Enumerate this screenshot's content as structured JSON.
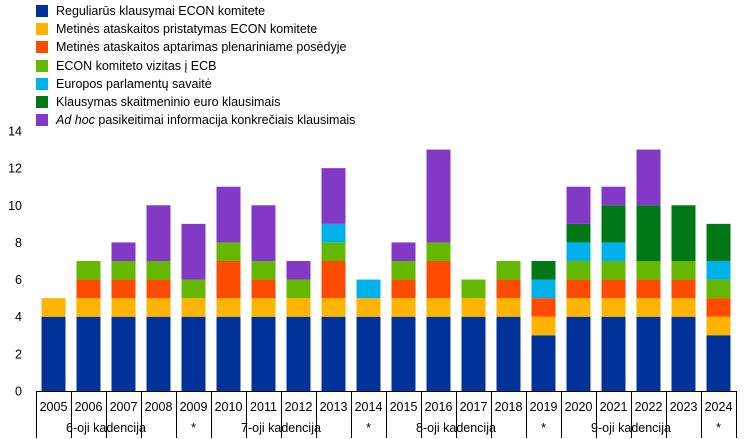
{
  "chart_data": {
    "type": "bar",
    "stacked": true,
    "title": "",
    "xlabel": "",
    "ylabel": "",
    "ylim": [
      0,
      14
    ],
    "yticks": [
      0,
      2,
      4,
      6,
      8,
      10,
      12,
      14
    ],
    "grid": false,
    "legend_position": "top-left",
    "categories": [
      "2005",
      "2006",
      "2007",
      "2008",
      "2009",
      "2010",
      "2011",
      "2012",
      "2013",
      "2014",
      "2015",
      "2016",
      "2017",
      "2018",
      "2019",
      "2020",
      "2021",
      "2022",
      "2023",
      "2024"
    ],
    "series": [
      {
        "name": "Reguliarūs klausymai ECON komitete",
        "color": "#003299",
        "values": [
          4,
          4,
          4,
          4,
          4,
          4,
          4,
          4,
          4,
          4,
          4,
          4,
          4,
          4,
          3,
          4,
          4,
          4,
          4,
          3
        ]
      },
      {
        "name": "Metinės ataskaitos pristatymas ECON komitete",
        "color": "#FFB400",
        "values": [
          1,
          1,
          1,
          1,
          1,
          1,
          1,
          1,
          1,
          1,
          1,
          1,
          1,
          1,
          1,
          1,
          1,
          1,
          1,
          1
        ]
      },
      {
        "name": "Metinės ataskaitos aptarimas plenariniame posėdyje",
        "color": "#FF4B00",
        "values": [
          0,
          1,
          1,
          1,
          0,
          2,
          1,
          0,
          2,
          0,
          1,
          2,
          0,
          1,
          1,
          1,
          1,
          1,
          1,
          1
        ]
      },
      {
        "name": "ECON komiteto vizitas į ECB",
        "color": "#65B800",
        "values": [
          0,
          1,
          1,
          1,
          1,
          1,
          1,
          1,
          1,
          0,
          1,
          1,
          1,
          1,
          0,
          1,
          1,
          1,
          1,
          1
        ]
      },
      {
        "name": "Europos parlamentų savaitė",
        "color": "#00B1EA",
        "values": [
          0,
          0,
          0,
          0,
          0,
          0,
          0,
          0,
          1,
          1,
          0,
          0,
          0,
          0,
          1,
          1,
          1,
          0,
          0,
          1
        ]
      },
      {
        "name": "Klausymas skaitmeninio euro klausimais",
        "color": "#007816",
        "values": [
          0,
          0,
          0,
          0,
          0,
          0,
          0,
          0,
          0,
          0,
          0,
          0,
          0,
          0,
          1,
          1,
          2,
          3,
          3,
          2
        ]
      },
      {
        "name": "pasikeitimai informacija konkrečiais klausimais",
        "name_prefix_italic": "Ad hoc",
        "color": "#8139C6",
        "values": [
          0,
          0,
          1,
          3,
          3,
          3,
          3,
          1,
          3,
          0,
          1,
          5,
          0,
          0,
          0,
          2,
          1,
          3,
          0,
          0
        ]
      }
    ],
    "groups": [
      {
        "label": "6-oji kadencija",
        "from": 0,
        "to": 3
      },
      {
        "label": "*",
        "from": 4,
        "to": 4
      },
      {
        "label": "7-oji kadencija",
        "from": 5,
        "to": 8
      },
      {
        "label": "*",
        "from": 9,
        "to": 9
      },
      {
        "label": "8-oji kadencija",
        "from": 10,
        "to": 13
      },
      {
        "label": "*",
        "from": 14,
        "to": 14
      },
      {
        "label": "9-oji kadencija",
        "from": 15,
        "to": 18
      },
      {
        "label": "*",
        "from": 19,
        "to": 19
      }
    ]
  }
}
